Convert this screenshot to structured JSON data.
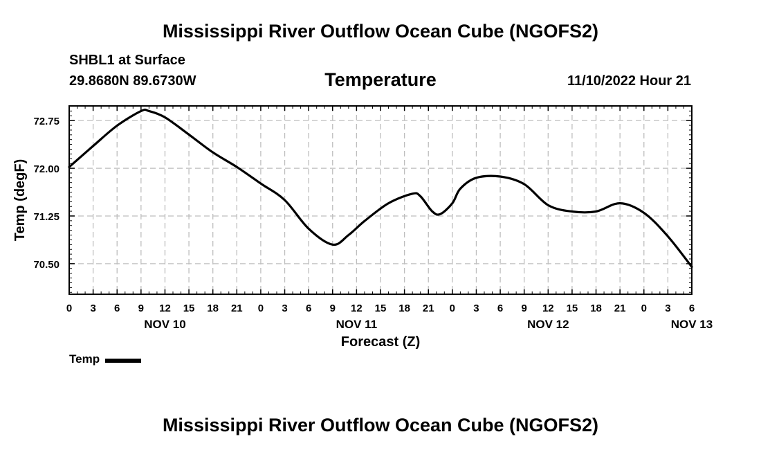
{
  "header": {
    "title": "Mississippi River Outflow Ocean Cube (NGOFS2)",
    "station": "SHBL1 at Surface",
    "coords": "29.8680N  89.6730W",
    "variable": "Temperature",
    "datetime": "11/10/2022 Hour 21"
  },
  "footer": {
    "title": "Mississippi River Outflow Ocean Cube (NGOFS2)"
  },
  "chart_data": {
    "type": "line",
    "title": "Temperature",
    "xlabel": "Forecast (Z)",
    "ylabel": "Temp (degF)",
    "xlim": [
      0,
      78
    ],
    "ylim": [
      70.02,
      72.98
    ],
    "grid": true,
    "legend_position": "bottom-left",
    "x_tick_labels": [
      "0",
      "3",
      "6",
      "9",
      "12",
      "15",
      "18",
      "21",
      "0",
      "3",
      "6",
      "9",
      "12",
      "15",
      "18",
      "21",
      "0",
      "3",
      "6",
      "9",
      "12",
      "15",
      "18",
      "21",
      "0",
      "3",
      "6"
    ],
    "y_ticks": [
      70.5,
      71.25,
      72.0,
      72.75
    ],
    "y_tick_labels": [
      "70.50",
      "71.25",
      "72.00",
      "72.75"
    ],
    "day_labels": [
      {
        "label": "NOV 10",
        "hour": 12
      },
      {
        "label": "NOV 11",
        "hour": 36
      },
      {
        "label": "NOV 12",
        "hour": 60
      },
      {
        "label": "NOV 13",
        "hour": 78
      }
    ],
    "series": [
      {
        "name": "Temp",
        "color": "#000000",
        "x": [
          0,
          3,
          6,
          9,
          10,
          12,
          15,
          18,
          21,
          24,
          27,
          30,
          33,
          35,
          37,
          40,
          43,
          44,
          45.5,
          46.5,
          48,
          49,
          51,
          54,
          57,
          60,
          63,
          66,
          69,
          72,
          75,
          78
        ],
        "values": [
          72.02,
          72.35,
          72.67,
          72.9,
          72.9,
          72.8,
          72.53,
          72.25,
          72.02,
          71.76,
          71.5,
          71.05,
          70.8,
          70.95,
          71.17,
          71.45,
          71.6,
          71.56,
          71.32,
          71.28,
          71.45,
          71.68,
          71.85,
          71.87,
          71.75,
          71.42,
          71.32,
          71.32,
          71.45,
          71.3,
          70.93,
          70.45
        ]
      }
    ]
  }
}
